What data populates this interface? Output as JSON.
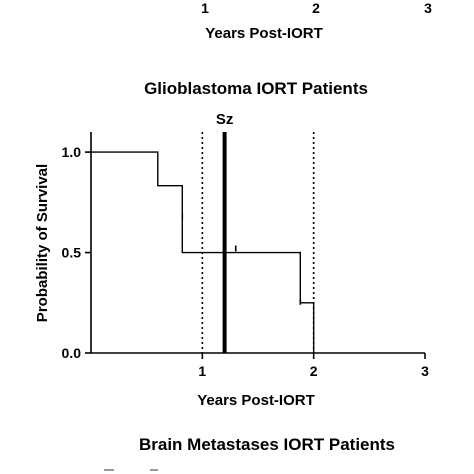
{
  "top_fragment": {
    "tick_labels": [
      "1",
      "2",
      "3"
    ],
    "xlabel": "Years Post-IORT"
  },
  "chart_data": {
    "type": "line",
    "title": "Glioblastoma IORT Patients",
    "xlabel": "Years Post-IORT",
    "ylabel": "Probability of Survival",
    "xlim": [
      0,
      3
    ],
    "ylim": [
      0,
      1.1
    ],
    "x_ticks": [
      1,
      2,
      3
    ],
    "x_tick_labels": [
      "1",
      "2",
      "3"
    ],
    "y_ticks": [
      0,
      0.5,
      1
    ],
    "y_tick_labels": [
      "0.0",
      "0.5",
      "1.0"
    ],
    "grid": false,
    "series": [
      {
        "style": "step",
        "x": [
          0,
          0.6,
          0.6,
          0.82,
          0.82,
          1.88,
          1.88,
          2.0,
          2.0
        ],
        "y": [
          1.0,
          1.0,
          0.833,
          0.833,
          0.5,
          0.5,
          0.25,
          0.25,
          0.0
        ],
        "censor_marks": [
          [
            0.82,
            0.68
          ],
          [
            1.3,
            0.52
          ],
          [
            1.88,
            0.255
          ]
        ]
      }
    ],
    "reference_lines": [
      {
        "x": 1.0,
        "style": "dotted"
      },
      {
        "x": 1.2,
        "style": "thick",
        "label": "Sz"
      },
      {
        "x": 2.0,
        "style": "dotted"
      }
    ]
  },
  "bottom_fragment": {
    "title": "Brain Metastases IORT Patients"
  },
  "colors": {
    "ink": "#000000",
    "background": "#ffffff"
  }
}
